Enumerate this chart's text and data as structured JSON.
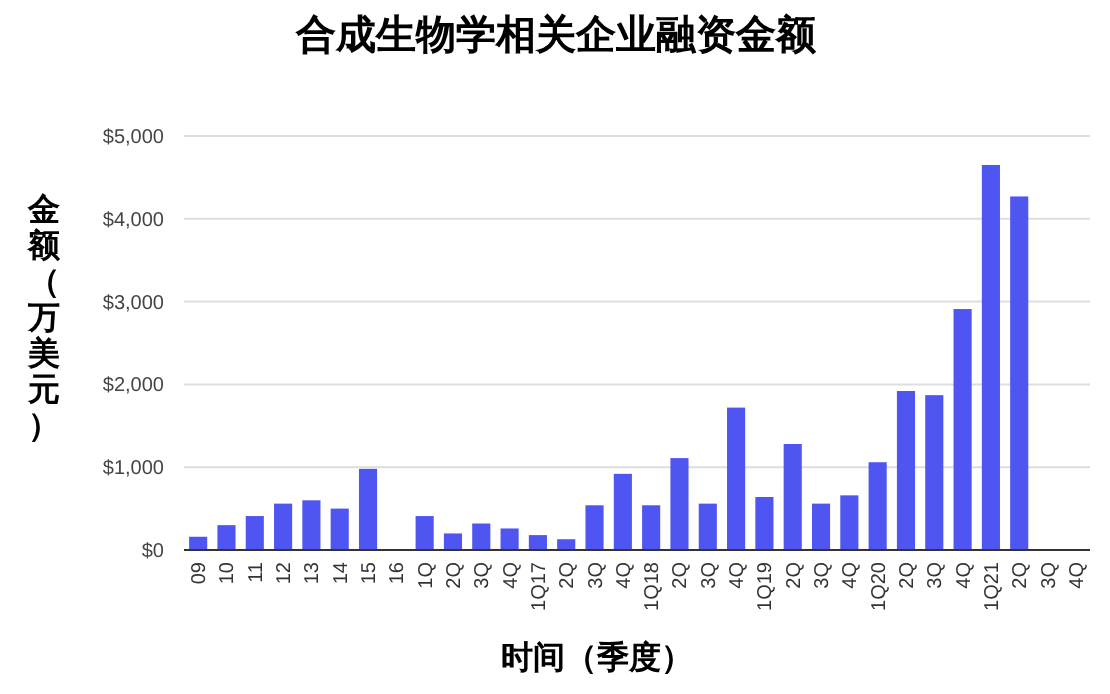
{
  "chart_data": {
    "type": "bar",
    "title": "合成生物学相关企业融资金额",
    "xlabel": "时间（季度）",
    "ylabel": "金额（万美元）",
    "categories": [
      "09",
      "10",
      "11",
      "12",
      "13",
      "14",
      "15",
      "16",
      "1Q",
      "2Q",
      "3Q",
      "4Q",
      "1Q17",
      "2Q",
      "3Q",
      "4Q",
      "1Q18",
      "2Q",
      "3Q",
      "4Q",
      "1Q19",
      "2Q",
      "3Q",
      "4Q",
      "1Q20",
      "2Q",
      "3Q",
      "4Q",
      "1Q21",
      "2Q",
      "3Q",
      "4Q"
    ],
    "values": [
      160,
      300,
      410,
      560,
      600,
      500,
      980,
      null,
      410,
      200,
      320,
      260,
      180,
      130,
      540,
      920,
      540,
      1110,
      560,
      1720,
      640,
      1280,
      560,
      660,
      1060,
      1920,
      1870,
      2910,
      4650,
      4270,
      null,
      null
    ],
    "color": "#4f55f0",
    "ylim": [
      0,
      5000
    ],
    "yticks": [
      {
        "value": 0,
        "label": "$0"
      },
      {
        "value": 1000,
        "label": "$1,000"
      },
      {
        "value": 2000,
        "label": "$2,000"
      },
      {
        "value": 3000,
        "label": "$3,000"
      },
      {
        "value": 4000,
        "label": "$4,000"
      },
      {
        "value": 5000,
        "label": "$5,000"
      }
    ],
    "grid": "y"
  }
}
